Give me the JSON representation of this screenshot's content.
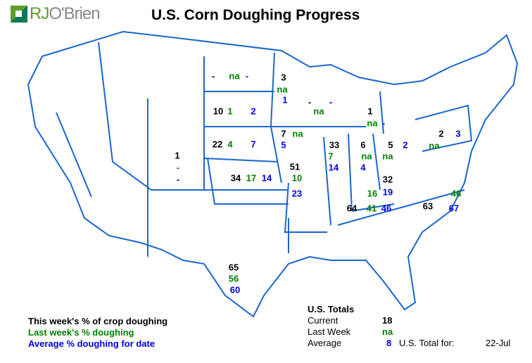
{
  "header": {
    "title": "U.S. Corn Doughing Progress",
    "logo_text": "RJO'Brien"
  },
  "colors": {
    "current": "#000000",
    "last_week": "#008000",
    "average": "#0000e0",
    "borders": "#1a66cc"
  },
  "states": {
    "ND": {
      "current": "-",
      "last_week": "na",
      "average": "-"
    },
    "SD": {
      "current": "10",
      "last_week": "1",
      "average": "2"
    },
    "NE": {
      "current": "22",
      "last_week": "4",
      "average": "7"
    },
    "KS": {
      "current": "34",
      "last_week": "17",
      "average": "14"
    },
    "CO": {
      "current": "1",
      "last_week": "-",
      "average": "-"
    },
    "MN": {
      "current": "3",
      "last_week": "na",
      "average": "1"
    },
    "WI": {
      "current": "-",
      "last_week": "na",
      "average": "-"
    },
    "IA": {
      "current": "7",
      "last_week": "na",
      "average": "5"
    },
    "MO": {
      "current": "51",
      "last_week": "10",
      "average": "23"
    },
    "IL": {
      "current": "33",
      "last_week": "7",
      "average": "14"
    },
    "MI": {
      "current": "1",
      "last_week": "na",
      "average": "-"
    },
    "IN": {
      "current": "6",
      "last_week": "na",
      "average": "4"
    },
    "OH": {
      "current": "5",
      "last_week": "na",
      "average": "2"
    },
    "PA": {
      "current": "2",
      "last_week": "na",
      "average": "3"
    },
    "KY": {
      "current": "32",
      "last_week": "16",
      "average": "19"
    },
    "TN": {
      "current": "64",
      "last_week": "41",
      "average": "46"
    },
    "NC": {
      "current": "63",
      "last_week": "46",
      "average": "67"
    },
    "TX": {
      "current": "65",
      "last_week": "56",
      "average": "60"
    }
  },
  "legend": {
    "current": "This week's % of crop doughing",
    "last_week": "Last week's % doughing",
    "average": "Average % doughing for date"
  },
  "totals": {
    "heading": "U.S. Totals",
    "current_label": "Current",
    "current": "18",
    "last_week_label": "Last Week",
    "last_week": "na",
    "average_label": "Average",
    "average": "8",
    "date_label": "U.S. Total for:",
    "date": "22-Jul"
  }
}
